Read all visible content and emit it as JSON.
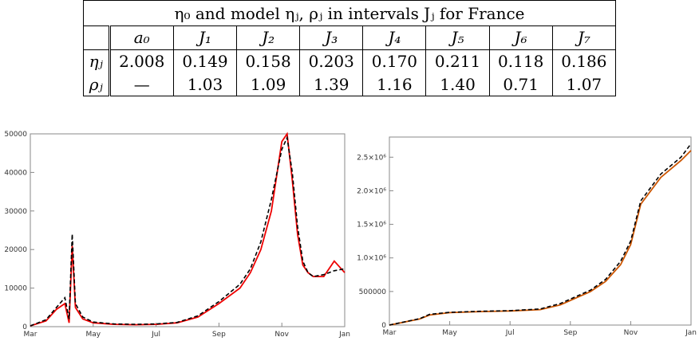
{
  "table": {
    "caption": "η₀ and model ηⱼ, ρⱼ in intervals Jⱼ for France",
    "columns": [
      "a₀",
      "J₁",
      "J₂",
      "J₃",
      "J₄",
      "J₅",
      "J₆",
      "J₇"
    ],
    "eta_label": "ηⱼ",
    "rho_label": "ρⱼ",
    "eta": [
      "2.008",
      "0.149",
      "0.158",
      "0.203",
      "0.170",
      "0.211",
      "0.118",
      "0.186"
    ],
    "rho": [
      "—",
      "1.03",
      "1.09",
      "1.39",
      "1.16",
      "1.40",
      "0.71",
      "1.07"
    ]
  },
  "chart_data": [
    {
      "type": "line",
      "x_ticks": [
        "Mar",
        "May",
        "Jul",
        "Sep",
        "Nov",
        "Jan"
      ],
      "y_ticks": [
        "0",
        "10000",
        "20000",
        "30000",
        "40000",
        "50000"
      ],
      "ylim": [
        0,
        50000
      ],
      "x": [
        0,
        15,
        25,
        33,
        37,
        40,
        43,
        50,
        60,
        80,
        100,
        120,
        140,
        160,
        180,
        200,
        210,
        220,
        230,
        240,
        245,
        250,
        255,
        260,
        265,
        270,
        280,
        290,
        300
      ],
      "series": [
        {
          "color": "#ee0000",
          "style": "solid",
          "values": [
            200,
            1500,
            4500,
            6000,
            1000,
            21000,
            5000,
            2000,
            1000,
            600,
            500,
            600,
            1000,
            2500,
            6000,
            10000,
            14000,
            20000,
            30000,
            48000,
            50000,
            38000,
            24000,
            16000,
            14000,
            13000,
            13000,
            17000,
            14000
          ]
        },
        {
          "color": "#000000",
          "style": "dashed",
          "values": [
            200,
            1800,
            5000,
            7500,
            2000,
            24000,
            6000,
            2500,
            1200,
            700,
            600,
            700,
            1100,
            2800,
            6500,
            11000,
            15000,
            22000,
            33000,
            46000,
            49000,
            40000,
            26000,
            17000,
            14000,
            13000,
            13500,
            14500,
            15000
          ]
        }
      ]
    },
    {
      "type": "line",
      "x_ticks": [
        "Mar",
        "May",
        "Jul",
        "Sep",
        "Nov",
        "Jan"
      ],
      "y_ticks": [
        "0",
        "500000",
        "1.0×10⁶",
        "1.5×10⁶",
        "2.0×10⁶",
        "2.5×10⁶"
      ],
      "ylim": [
        0,
        2800000
      ],
      "x": [
        0,
        30,
        40,
        60,
        90,
        120,
        150,
        170,
        185,
        200,
        215,
        230,
        240,
        250,
        270,
        290,
        300
      ],
      "series": [
        {
          "color": "#cc5500",
          "style": "solid",
          "values": [
            0,
            90000,
            150000,
            185000,
            200000,
            210000,
            230000,
            300000,
            400000,
            500000,
            650000,
            900000,
            1200000,
            1800000,
            2200000,
            2450000,
            2600000
          ]
        },
        {
          "color": "#000000",
          "style": "dashed",
          "values": [
            0,
            95000,
            160000,
            190000,
            205000,
            215000,
            240000,
            320000,
            420000,
            520000,
            680000,
            950000,
            1250000,
            1850000,
            2250000,
            2500000,
            2700000
          ]
        }
      ]
    }
  ]
}
